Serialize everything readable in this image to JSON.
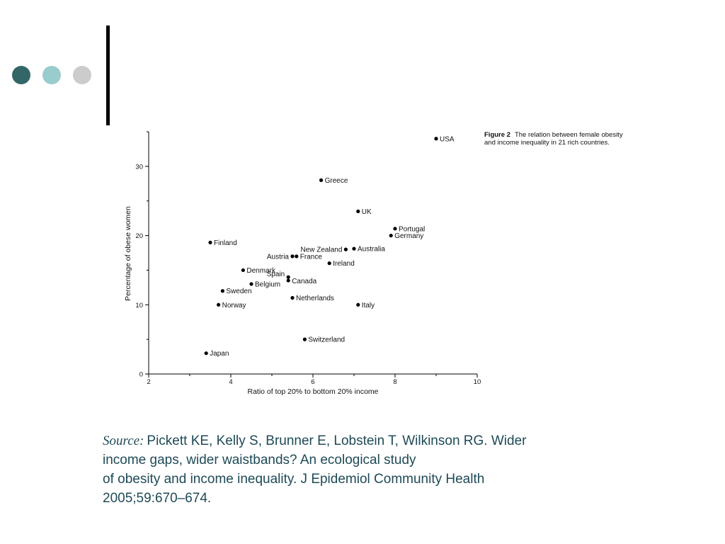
{
  "decor": {
    "dot_colors": [
      "#336666",
      "#99cccc",
      "#cccccc"
    ]
  },
  "caption": {
    "label": "Figure 2",
    "text": "The relation between female obesity and income inequality in 21 rich countries."
  },
  "source": {
    "label": "Source:",
    "lines": [
      "Pickett KE, Kelly S, Brunner E, Lobstein T, Wilkinson RG. Wider",
      "income gaps, wider waistbands? An ecological study",
      "of obesity and income inequality. J Epidemiol Community Health",
      "2005;59:670–674."
    ]
  },
  "chart_data": {
    "type": "scatter",
    "title": "",
    "xlabel": "Ratio of top 20% to bottom 20% income",
    "ylabel": "Percentage of obese women",
    "xlim": [
      2,
      10
    ],
    "ylim": [
      0,
      35
    ],
    "xticks": [
      2,
      4,
      6,
      8,
      10
    ],
    "yticks": [
      0,
      10,
      20,
      30
    ],
    "grid": false,
    "legend": "none",
    "points": [
      {
        "label": "USA",
        "x": 9.0,
        "y": 34.0
      },
      {
        "label": "Greece",
        "x": 6.2,
        "y": 28.0
      },
      {
        "label": "UK",
        "x": 7.1,
        "y": 23.5
      },
      {
        "label": "Portugal",
        "x": 8.0,
        "y": 21.0
      },
      {
        "label": "Germany",
        "x": 7.9,
        "y": 20.0
      },
      {
        "label": "Finland",
        "x": 3.5,
        "y": 19.0
      },
      {
        "label": "New Zealand",
        "x": 6.8,
        "y": 18.0
      },
      {
        "label": "Australia",
        "x": 7.0,
        "y": 18.1
      },
      {
        "label": "Austria",
        "x": 5.5,
        "y": 17.0
      },
      {
        "label": "France",
        "x": 5.6,
        "y": 17.0
      },
      {
        "label": "Ireland",
        "x": 6.4,
        "y": 16.0
      },
      {
        "label": "Denmark",
        "x": 4.3,
        "y": 15.0
      },
      {
        "label": "Spain",
        "x": 5.4,
        "y": 14.0
      },
      {
        "label": "Canada",
        "x": 5.4,
        "y": 13.5
      },
      {
        "label": "Belgium",
        "x": 4.5,
        "y": 13.0
      },
      {
        "label": "Sweden",
        "x": 3.8,
        "y": 12.0
      },
      {
        "label": "Netherlands",
        "x": 5.5,
        "y": 11.0
      },
      {
        "label": "Norway",
        "x": 3.7,
        "y": 10.0
      },
      {
        "label": "Italy",
        "x": 7.1,
        "y": 10.0
      },
      {
        "label": "Switzerland",
        "x": 5.8,
        "y": 5.0
      },
      {
        "label": "Japan",
        "x": 3.4,
        "y": 3.0
      }
    ]
  }
}
